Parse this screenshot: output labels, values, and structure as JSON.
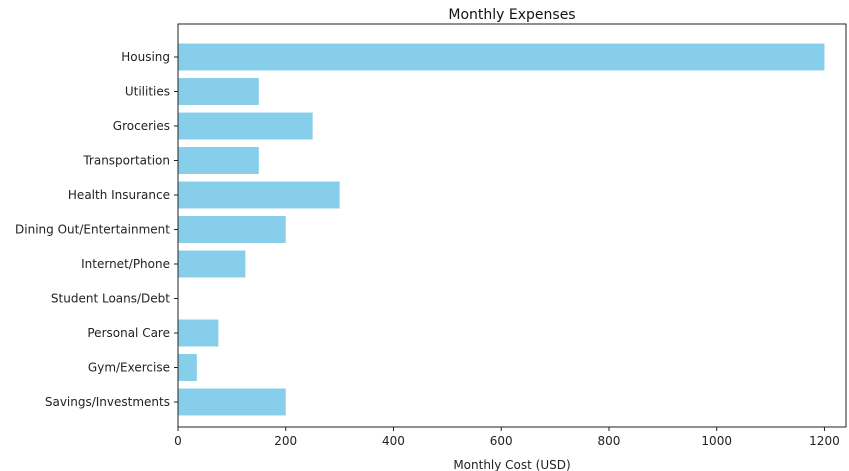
{
  "chart_data": {
    "type": "bar",
    "orientation": "horizontal",
    "title": "Monthly Expenses",
    "xlabel": "Monthly Cost (USD)",
    "ylabel": "",
    "categories": [
      "Housing",
      "Utilities",
      "Groceries",
      "Transportation",
      "Health Insurance",
      "Dining Out/Entertainment",
      "Internet/Phone",
      "Student Loans/Debt",
      "Personal Care",
      "Gym/Exercise",
      "Savings/Investments"
    ],
    "values": [
      1200,
      150,
      250,
      150,
      300,
      200,
      125,
      0,
      75,
      35,
      200
    ],
    "xlim": [
      0,
      1240
    ],
    "xticks": [
      0,
      200,
      400,
      600,
      800,
      1000,
      1200
    ],
    "grid": false,
    "bar_color": "#87ceeb"
  }
}
